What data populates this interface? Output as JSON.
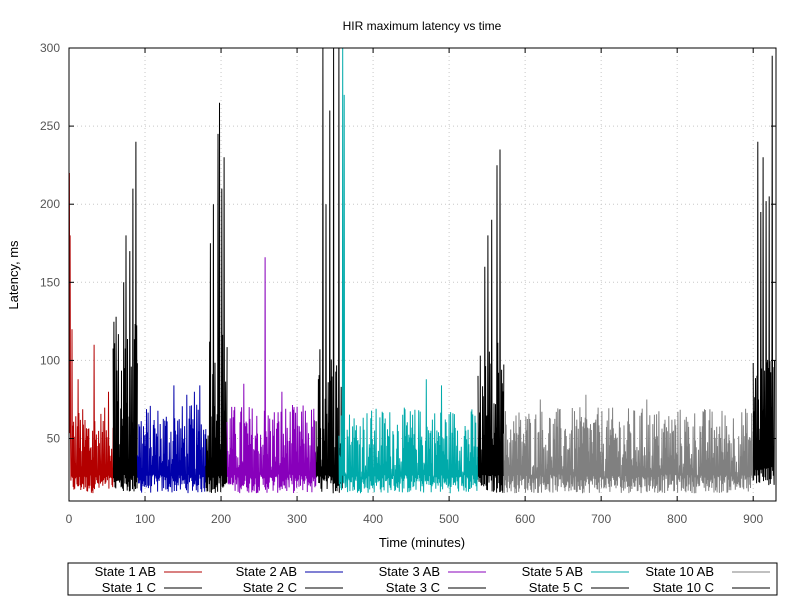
{
  "chart_data": {
    "type": "line",
    "title": "HIR maximum latency vs time",
    "xlabel": "Time (minutes)",
    "ylabel": "Latency, ms",
    "xlim": [
      0,
      930
    ],
    "ylim": [
      10,
      300
    ],
    "xticks": [
      0,
      100,
      200,
      300,
      400,
      500,
      600,
      700,
      800,
      900
    ],
    "yticks": [
      50,
      100,
      150,
      200,
      250,
      300
    ],
    "grid": true,
    "legend_position": "bottom",
    "series": [
      {
        "name": "State 1 AB",
        "color": "#b30000",
        "range": [
          0,
          58
        ],
        "low": 15,
        "base_max": 70,
        "spikes": [
          [
            0.5,
            220
          ],
          [
            1.5,
            180
          ],
          [
            4,
            120
          ],
          [
            33,
            110
          ],
          [
            12,
            88
          ],
          [
            52,
            80
          ]
        ]
      },
      {
        "name": "State 1 C",
        "color": "#000000",
        "range": [
          58,
          90
        ],
        "low": 15,
        "base_max": 125,
        "spikes": [
          [
            75,
            180
          ],
          [
            80,
            170
          ],
          [
            84,
            210
          ],
          [
            88,
            240
          ],
          [
            72,
            150
          ],
          [
            62,
            128
          ]
        ]
      },
      {
        "name": "State 2 AB",
        "color": "#0000aa",
        "range": [
          90,
          180
        ],
        "low": 15,
        "base_max": 72,
        "spikes": [
          [
            138,
            84
          ],
          [
            155,
            78
          ],
          [
            165,
            80
          ],
          [
            172,
            84
          ]
        ]
      },
      {
        "name": "State 2 C",
        "color": "#000000",
        "range": [
          180,
          208
        ],
        "low": 15,
        "base_max": 120,
        "spikes": [
          [
            186,
            175
          ],
          [
            190,
            200
          ],
          [
            196,
            245
          ],
          [
            198,
            265
          ],
          [
            204,
            230
          ],
          [
            201,
            210
          ]
        ]
      },
      {
        "name": "State 3 AB",
        "color": "#8800bb",
        "range": [
          208,
          325
        ],
        "low": 15,
        "base_max": 72,
        "spikes": [
          [
            258,
            166
          ],
          [
            230,
            85
          ],
          [
            280,
            80
          ]
        ]
      },
      {
        "name": "State 3 C",
        "color": "#000000",
        "range": [
          325,
          360
        ],
        "low": 15,
        "base_max": 110,
        "spikes": [
          [
            334,
            300
          ],
          [
            343,
            260
          ],
          [
            348,
            300
          ],
          [
            355,
            300
          ],
          [
            338,
            200
          ]
        ]
      },
      {
        "name": "State 5 AB",
        "color": "#00aaaa",
        "range": [
          355,
          538
        ],
        "low": 15,
        "base_max": 70,
        "spikes": [
          [
            360,
            300
          ],
          [
            362,
            270
          ],
          [
            470,
            88
          ],
          [
            490,
            84
          ]
        ]
      },
      {
        "name": "State 5 C",
        "color": "#000000",
        "range": [
          538,
          572
        ],
        "low": 15,
        "base_max": 115,
        "spikes": [
          [
            551,
            180
          ],
          [
            556,
            190
          ],
          [
            563,
            225
          ],
          [
            567,
            235
          ],
          [
            547,
            160
          ]
        ]
      },
      {
        "name": "State 10 AB",
        "color": "#808080",
        "range": [
          572,
          900
        ],
        "low": 15,
        "base_max": 70,
        "spikes": [
          [
            620,
            75
          ],
          [
            680,
            78
          ],
          [
            760,
            75
          ]
        ]
      },
      {
        "name": "State 10 C",
        "color": "#000000",
        "range": [
          900,
          928
        ],
        "low": 20,
        "base_max": 110,
        "spikes": [
          [
            906,
            240
          ],
          [
            910,
            195
          ],
          [
            917,
            202
          ],
          [
            921,
            205
          ],
          [
            925,
            295
          ],
          [
            913,
            230
          ]
        ]
      }
    ]
  }
}
